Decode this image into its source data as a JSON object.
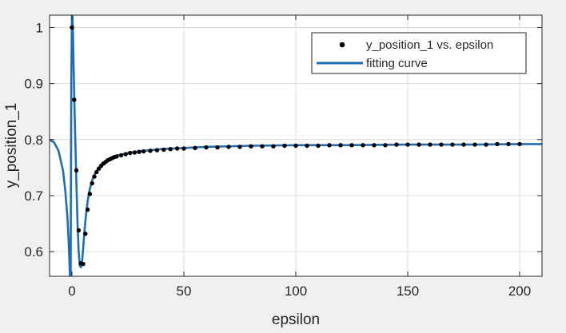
{
  "chart_data": {
    "type": "scatter",
    "xlabel": "epsilon",
    "ylabel": "y_position_1",
    "xlim": [
      -10,
      210
    ],
    "ylim": [
      0.556,
      1.022
    ],
    "x_ticks": [
      0,
      50,
      100,
      150,
      200
    ],
    "x_tick_labels": [
      "0",
      "50",
      "100",
      "150",
      "200"
    ],
    "y_ticks": [
      0.6,
      0.7,
      0.8,
      0.9,
      1.0
    ],
    "y_tick_labels": [
      "0.6",
      "0.7",
      "0.8",
      "0.9",
      "1"
    ],
    "grid": true,
    "legend_position": "top-right",
    "colors": {
      "points": "#000000",
      "curve": "#1f6eb4"
    },
    "series": [
      {
        "name": "y_position_1 vs. epsilon",
        "kind": "scatter",
        "x": [
          0,
          1,
          2,
          3,
          4,
          5,
          6,
          7,
          8,
          9,
          10,
          11,
          12,
          13,
          14,
          15,
          16,
          17,
          18,
          19,
          20,
          22,
          24,
          26,
          28,
          30,
          32,
          35,
          38,
          41,
          44,
          47,
          50,
          55,
          60,
          65,
          70,
          75,
          80,
          85,
          90,
          95,
          100,
          105,
          110,
          115,
          120,
          125,
          130,
          135,
          140,
          145,
          150,
          155,
          160,
          165,
          170,
          175,
          180,
          185,
          190,
          195,
          200
        ],
        "y": [
          1.0,
          0.871,
          0.745,
          0.638,
          0.579,
          0.578,
          0.632,
          0.675,
          0.703,
          0.722,
          0.734,
          0.742,
          0.748,
          0.753,
          0.757,
          0.76,
          0.763,
          0.765,
          0.767,
          0.769,
          0.77,
          0.772,
          0.774,
          0.776,
          0.777,
          0.778,
          0.779,
          0.78,
          0.781,
          0.782,
          0.783,
          0.784,
          0.784,
          0.785,
          0.786,
          0.786,
          0.787,
          0.787,
          0.788,
          0.788,
          0.788,
          0.789,
          0.789,
          0.789,
          0.789,
          0.79,
          0.79,
          0.79,
          0.79,
          0.79,
          0.79,
          0.791,
          0.791,
          0.791,
          0.791,
          0.791,
          0.791,
          0.791,
          0.791,
          0.791,
          0.792,
          0.792,
          0.792
        ]
      },
      {
        "name": "fitting curve",
        "kind": "line",
        "x": [
          -10,
          -8,
          -6,
          -4,
          -3,
          -2,
          -1.5,
          -1.2,
          -0.9,
          -0.6,
          -0.3,
          0,
          0.2,
          0.4,
          0.6,
          0.8,
          1,
          1.5,
          2,
          2.5,
          3,
          3.5,
          4,
          4.5,
          5,
          5.5,
          6,
          7,
          8,
          9,
          10,
          12,
          14,
          16,
          18,
          20,
          25,
          30,
          40,
          50,
          60,
          80,
          100,
          120,
          150,
          180,
          200,
          210
        ],
        "y": [
          0.8,
          0.795,
          0.78,
          0.745,
          0.71,
          0.66,
          0.62,
          0.59,
          0.556,
          0.556,
          0.9,
          1.022,
          1.022,
          1.0,
          0.96,
          0.92,
          0.88,
          0.8,
          0.72,
          0.65,
          0.6,
          0.575,
          0.572,
          0.582,
          0.605,
          0.632,
          0.655,
          0.69,
          0.712,
          0.727,
          0.737,
          0.75,
          0.758,
          0.764,
          0.768,
          0.771,
          0.776,
          0.779,
          0.783,
          0.785,
          0.787,
          0.789,
          0.79,
          0.79,
          0.791,
          0.791,
          0.792,
          0.792
        ]
      }
    ]
  }
}
